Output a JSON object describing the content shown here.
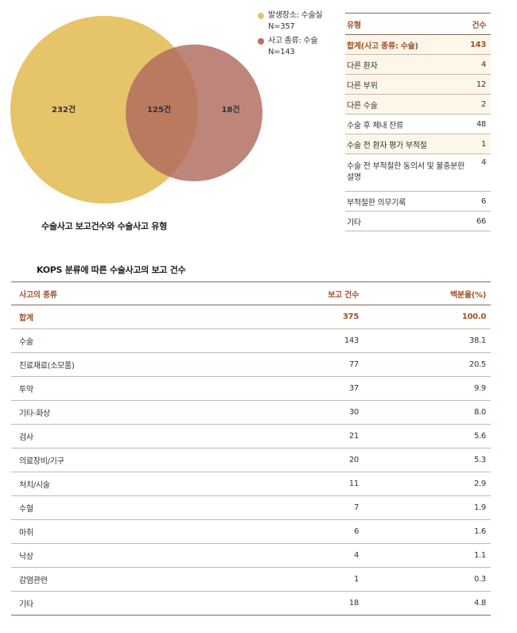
{
  "venn": {
    "left_count": "232건",
    "overlap_count": "125건",
    "right_count": "18건",
    "caption": "수술사고 보고건수와 수술사고 유형",
    "colors": {
      "left": "#e6c46a",
      "right": "#b87063",
      "overlap": "#b87047"
    }
  },
  "legend": [
    {
      "label": "발생장소: 수술실",
      "sub": "N=357",
      "color": "#e6c46a"
    },
    {
      "label": "사고 종류: 수술",
      "sub": "N=143",
      "color": "#b87063"
    }
  ],
  "type_table": {
    "headers": {
      "type": "유형",
      "count": "건수"
    },
    "total": {
      "type": "합계(사고 종류: 수술)",
      "count": "143"
    },
    "rows": [
      {
        "type": "다른 환자",
        "count": "4"
      },
      {
        "type": "다른 부위",
        "count": "12"
      },
      {
        "type": "다른 수술",
        "count": "2"
      },
      {
        "type": "수술 후 체내 잔류",
        "count": "48"
      },
      {
        "type": "수술 전 환자 평가 부적절",
        "count": "1"
      },
      {
        "type": "수술 전 부적절한 동의서 및 불충분한 설명",
        "count": "4"
      },
      {
        "type": "부적절한 의무기록",
        "count": "6"
      },
      {
        "type": "기타",
        "count": "66"
      }
    ]
  },
  "main_table": {
    "title": "KOPS 분류에 따른 수술사고의 보고 건수",
    "headers": {
      "kind": "사고의 종류",
      "count": "보고 건수",
      "pct": "백분율(%)"
    },
    "total": {
      "kind": "합계",
      "count": "375",
      "pct": "100.0"
    },
    "rows": [
      {
        "kind": "수술",
        "count": "143",
        "pct": "38.1"
      },
      {
        "kind": "진료재료(소모품)",
        "count": "77",
        "pct": "20.5"
      },
      {
        "kind": "투약",
        "count": "37",
        "pct": "9.9"
      },
      {
        "kind": "기타-화상",
        "count": "30",
        "pct": "8.0"
      },
      {
        "kind": "검사",
        "count": "21",
        "pct": "5.6"
      },
      {
        "kind": "의료장비/기구",
        "count": "20",
        "pct": "5.3"
      },
      {
        "kind": "처치/시술",
        "count": "11",
        "pct": "2.9"
      },
      {
        "kind": "수혈",
        "count": "7",
        "pct": "1.9"
      },
      {
        "kind": "마취",
        "count": "6",
        "pct": "1.6"
      },
      {
        "kind": "낙상",
        "count": "4",
        "pct": "1.1"
      },
      {
        "kind": "감염관련",
        "count": "1",
        "pct": "0.3"
      },
      {
        "kind": "기타",
        "count": "18",
        "pct": "4.8"
      }
    ]
  }
}
